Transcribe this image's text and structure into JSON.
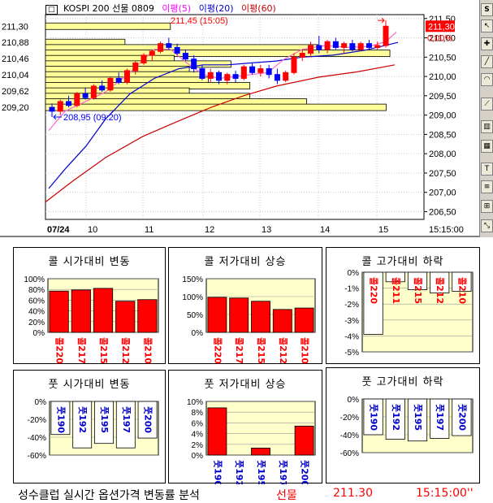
{
  "chart": {
    "title": {
      "name": "KOSPI 200 선물 0809",
      "ma5": "이평(5)",
      "ma20": "이평(20)",
      "ma60": "이평(60)"
    },
    "colors": {
      "up": "#ff0000",
      "down": "#0000ff",
      "ma5": "#ff66cc",
      "ma20": "#0000cc",
      "ma60": "#cc0000",
      "volume_profile": "#ffff99"
    },
    "left_levels": [
      "211,30",
      "210,88",
      "210,46",
      "210,04",
      "209,62",
      "209,20"
    ],
    "right_axis": [
      "211,50",
      "211,00",
      "210,50",
      "210,00",
      "209,50",
      "209,00",
      "208,50",
      "208,00",
      "207,50",
      "207,00",
      "206,50"
    ],
    "current_price": "211,30",
    "current_change": "0,00%",
    "high_annotation": "211,45 (15:05)",
    "low_annotation": "208,95 (09:20)",
    "x_labels": [
      "07/24",
      "10",
      "11",
      "12",
      "13",
      "14",
      "15"
    ],
    "time_label": "15:15:00",
    "volume_profile_levels": [
      211.3,
      210.88,
      210.74,
      210.6,
      210.46,
      210.32,
      210.18,
      210.04,
      209.9,
      209.76,
      209.62,
      209.48,
      209.34,
      209.2
    ],
    "volume_profile_lengths": [
      0.33,
      0.21,
      0.72,
      0.91,
      0.34,
      0.49,
      0.38,
      0.42,
      0.43,
      0.54,
      0.38,
      0.54,
      0.69,
      0.9
    ],
    "candles": [
      {
        "o": 209.2,
        "h": 209.3,
        "l": 208.95,
        "c": 209.1
      },
      {
        "o": 209.1,
        "h": 209.4,
        "l": 209.0,
        "c": 209.35
      },
      {
        "o": 209.35,
        "h": 209.5,
        "l": 209.2,
        "c": 209.25
      },
      {
        "o": 209.25,
        "h": 209.6,
        "l": 209.2,
        "c": 209.55
      },
      {
        "o": 209.55,
        "h": 209.7,
        "l": 209.4,
        "c": 209.45
      },
      {
        "o": 209.45,
        "h": 209.8,
        "l": 209.4,
        "c": 209.75
      },
      {
        "o": 209.75,
        "h": 209.9,
        "l": 209.6,
        "c": 209.65
      },
      {
        "o": 209.65,
        "h": 210.0,
        "l": 209.6,
        "c": 209.95
      },
      {
        "o": 209.95,
        "h": 210.1,
        "l": 209.8,
        "c": 209.85
      },
      {
        "o": 209.85,
        "h": 210.2,
        "l": 209.8,
        "c": 210.15
      },
      {
        "o": 210.15,
        "h": 210.4,
        "l": 210.05,
        "c": 210.35
      },
      {
        "o": 210.35,
        "h": 210.6,
        "l": 210.3,
        "c": 210.55
      },
      {
        "o": 210.55,
        "h": 210.7,
        "l": 210.4,
        "c": 210.65
      },
      {
        "o": 210.65,
        "h": 210.9,
        "l": 210.6,
        "c": 210.85
      },
      {
        "o": 210.85,
        "h": 211.0,
        "l": 210.7,
        "c": 210.75
      },
      {
        "o": 210.75,
        "h": 210.85,
        "l": 210.55,
        "c": 210.6
      },
      {
        "o": 210.6,
        "h": 210.7,
        "l": 210.4,
        "c": 210.45
      },
      {
        "o": 210.45,
        "h": 210.55,
        "l": 210.1,
        "c": 210.2
      },
      {
        "o": 210.2,
        "h": 210.3,
        "l": 209.9,
        "c": 209.95
      },
      {
        "o": 209.95,
        "h": 210.2,
        "l": 209.85,
        "c": 210.1
      },
      {
        "o": 210.1,
        "h": 210.15,
        "l": 209.8,
        "c": 209.9
      },
      {
        "o": 209.9,
        "h": 210.1,
        "l": 209.8,
        "c": 210.05
      },
      {
        "o": 210.05,
        "h": 210.15,
        "l": 209.85,
        "c": 209.95
      },
      {
        "o": 209.95,
        "h": 210.3,
        "l": 209.9,
        "c": 210.25
      },
      {
        "o": 210.25,
        "h": 210.35,
        "l": 210.05,
        "c": 210.1
      },
      {
        "o": 210.1,
        "h": 210.3,
        "l": 210.0,
        "c": 210.2
      },
      {
        "o": 210.2,
        "h": 210.3,
        "l": 209.95,
        "c": 210.05
      },
      {
        "o": 210.05,
        "h": 210.2,
        "l": 209.8,
        "c": 209.9
      },
      {
        "o": 209.9,
        "h": 210.15,
        "l": 209.85,
        "c": 210.1
      },
      {
        "o": 210.1,
        "h": 210.6,
        "l": 210.05,
        "c": 210.5
      },
      {
        "o": 210.5,
        "h": 210.7,
        "l": 210.4,
        "c": 210.6
      },
      {
        "o": 210.6,
        "h": 210.9,
        "l": 210.5,
        "c": 210.8
      },
      {
        "o": 210.8,
        "h": 211.05,
        "l": 210.6,
        "c": 210.7
      },
      {
        "o": 210.7,
        "h": 210.95,
        "l": 210.6,
        "c": 210.9
      },
      {
        "o": 210.9,
        "h": 211.0,
        "l": 210.7,
        "c": 210.75
      },
      {
        "o": 210.75,
        "h": 210.9,
        "l": 210.6,
        "c": 210.85
      },
      {
        "o": 210.85,
        "h": 210.95,
        "l": 210.65,
        "c": 210.7
      },
      {
        "o": 210.7,
        "h": 210.9,
        "l": 210.65,
        "c": 210.85
      },
      {
        "o": 210.85,
        "h": 210.95,
        "l": 210.7,
        "c": 210.75
      },
      {
        "o": 210.75,
        "h": 210.9,
        "l": 210.7,
        "c": 210.8
      },
      {
        "o": 210.8,
        "h": 211.45,
        "l": 210.75,
        "c": 211.3
      }
    ]
  },
  "panels": [
    {
      "title": "콜 시가대비 변동",
      "y_ticks": [
        "100%",
        "80%",
        "60%",
        "40%",
        "20%",
        "0%"
      ],
      "y_range": [
        0,
        100
      ],
      "categories": [
        "콜220",
        "콜217",
        "콜215",
        "콜212",
        "콜210"
      ],
      "values": [
        77,
        79,
        82,
        58,
        61
      ],
      "label_color": "#ff0000",
      "bar_fill": "#ff0000"
    },
    {
      "title": "콜 저가대비 상승",
      "y_ticks": [
        "150%",
        "100%",
        "50%",
        "0%"
      ],
      "y_range": [
        0,
        150
      ],
      "categories": [
        "콜220",
        "콜217",
        "콜215",
        "콜212",
        "콜210"
      ],
      "values": [
        98,
        96,
        87,
        64,
        68
      ],
      "label_color": "#ff0000",
      "bar_fill": "#ff0000"
    },
    {
      "title": "콜 고가대비 하락",
      "y_ticks": [
        "0%",
        "-1%",
        "-2%",
        "-3%",
        "-4%",
        "-5%"
      ],
      "y_range": [
        -5,
        0
      ],
      "categories": [
        "콜220",
        "콜211",
        "콜215",
        "콜212",
        "콜210"
      ],
      "values": [
        -3.9,
        -0.6,
        -1.1,
        -1.3,
        -1.2
      ],
      "label_color": "#ff0000",
      "bar_fill": "#ffffff"
    },
    {
      "title": "풋 시가대비 변동",
      "y_ticks": [
        "0%",
        "-20%",
        "-40%",
        "-60%"
      ],
      "y_range": [
        -60,
        0
      ],
      "categories": [
        "풋190",
        "풋192",
        "풋195",
        "풋197",
        "풋200"
      ],
      "values": [
        -37,
        -52,
        -47,
        -52,
        -41
      ],
      "label_color": "#0000cc",
      "bar_fill": "#ffffff"
    },
    {
      "title": "풋 저가대비 상승",
      "y_ticks": [
        "10%",
        "8%",
        "6%",
        "4%",
        "2%",
        "0%"
      ],
      "y_range": [
        0,
        10
      ],
      "categories": [
        "풋190",
        "풋192",
        "풋195",
        "풋197",
        "풋200"
      ],
      "values": [
        8.8,
        0,
        1.3,
        0,
        5.4
      ],
      "label_color": "#0000cc",
      "bar_fill": "#ff0000"
    },
    {
      "title": "풋 고가대비 하락",
      "y_ticks": [
        "0%",
        "-20%",
        "-40%",
        "-60%"
      ],
      "y_range": [
        -60,
        0
      ],
      "categories": [
        "풋190",
        "풋192",
        "풋195",
        "풋197",
        "풋200"
      ],
      "values": [
        -40,
        -45,
        -47,
        -44,
        -41
      ],
      "label_color": "#0000cc",
      "bar_fill": "#ffffff"
    }
  ],
  "footer": {
    "title": "성수클럽 실시간 옵션가격 변동률 분석",
    "instrument": "선물",
    "price": "211.30",
    "time": "15:15:00''"
  }
}
